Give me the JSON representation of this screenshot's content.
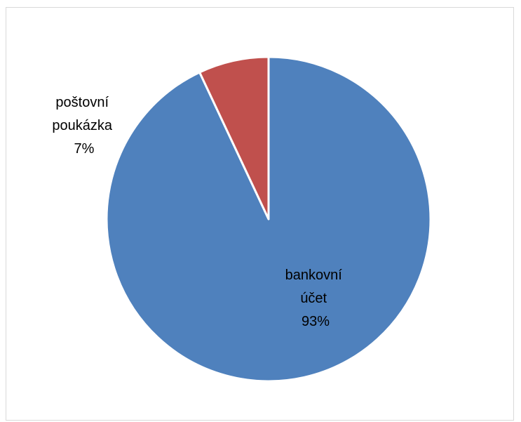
{
  "chart_data": {
    "type": "pie",
    "categories": [
      "bankovní účet",
      "poštovní poukázka"
    ],
    "values": [
      93,
      7
    ],
    "unit": "%",
    "colors": [
      "#4f81bd",
      "#c0504d"
    ],
    "slice_border_color": "#ffffff",
    "start_angle": "12 o'clock",
    "direction": "clockwise",
    "legend": "none",
    "data_labels": [
      {
        "lines": [
          "bankovní",
          "účet",
          "93%"
        ]
      },
      {
        "lines": [
          "poštovní",
          "poukázka",
          "7%"
        ]
      }
    ]
  }
}
